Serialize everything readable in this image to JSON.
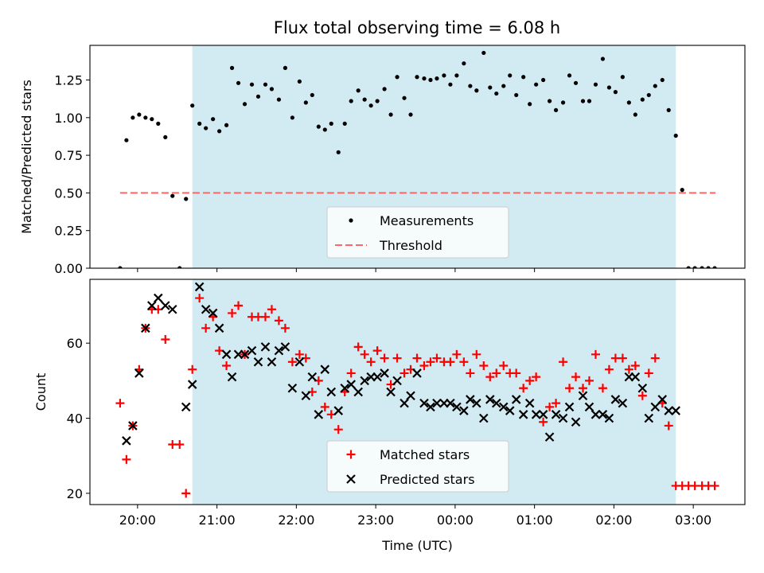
{
  "title": "Flux total observing time = 6.08 h",
  "colors": {
    "shade": "#add8e6",
    "measurement": "#000000",
    "threshold": "#ff6666",
    "matched": "#ff0000",
    "predicted": "#000000"
  },
  "chart_data": [
    {
      "type": "scatter",
      "ylabel": "Matched/Predicted stars",
      "xlabel": "",
      "xlim": [
        -0.6,
        7.65
      ],
      "ylim": [
        0,
        1.48
      ],
      "y_ticks": [
        {
          "value": 0.0,
          "label": "0.00"
        },
        {
          "value": 0.25,
          "label": "0.25"
        },
        {
          "value": 0.5,
          "label": "0.50"
        },
        {
          "value": 0.75,
          "label": "0.75"
        },
        {
          "value": 1.0,
          "label": "1.00"
        },
        {
          "value": 1.25,
          "label": "1.25"
        }
      ],
      "x_ticks": [
        0,
        1,
        2,
        3,
        4,
        5,
        6,
        7
      ],
      "shaded_x_range": [
        0.69,
        6.78
      ],
      "legend_position": "lower center",
      "legend": [
        {
          "label": "Measurements",
          "marker": "dot"
        },
        {
          "label": "Threshold",
          "marker": "dashed-line"
        }
      ],
      "threshold": {
        "value": 0.5,
        "x_range": [
          -0.22,
          7.28
        ]
      },
      "series": [
        {
          "name": "Measurements",
          "x": [
            -0.22,
            -0.14,
            -0.06,
            0.02,
            0.1,
            0.18,
            0.26,
            0.35,
            0.44,
            0.53,
            0.61,
            0.69,
            0.78,
            0.86,
            0.95,
            1.03,
            1.12,
            1.19,
            1.27,
            1.35,
            1.44,
            1.52,
            1.61,
            1.69,
            1.78,
            1.86,
            1.95,
            2.04,
            2.12,
            2.2,
            2.28,
            2.36,
            2.44,
            2.53,
            2.61,
            2.69,
            2.78,
            2.86,
            2.94,
            3.02,
            3.11,
            3.19,
            3.27,
            3.36,
            3.44,
            3.52,
            3.61,
            3.69,
            3.77,
            3.86,
            3.94,
            4.02,
            4.11,
            4.19,
            4.27,
            4.36,
            4.44,
            4.52,
            4.61,
            4.69,
            4.77,
            4.86,
            4.94,
            5.02,
            5.11,
            5.19,
            5.27,
            5.36,
            5.44,
            5.52,
            5.61,
            5.69,
            5.77,
            5.86,
            5.94,
            6.02,
            6.11,
            6.19,
            6.27,
            6.36,
            6.44,
            6.52,
            6.61,
            6.69,
            6.78,
            6.86,
            6.94,
            7.02,
            7.11,
            7.19,
            7.27
          ],
          "y": [
            0.0,
            0.85,
            1.0,
            1.02,
            1.0,
            0.99,
            0.96,
            0.87,
            0.48,
            0.0,
            0.46,
            1.08,
            0.96,
            0.93,
            0.99,
            0.91,
            0.95,
            1.33,
            1.23,
            1.09,
            1.22,
            1.14,
            1.22,
            1.19,
            1.12,
            1.33,
            1.0,
            1.24,
            1.1,
            1.15,
            0.94,
            0.92,
            0.96,
            0.77,
            0.96,
            1.11,
            1.18,
            1.12,
            1.08,
            1.11,
            1.19,
            1.02,
            1.27,
            1.13,
            1.02,
            1.27,
            1.26,
            1.25,
            1.26,
            1.28,
            1.22,
            1.28,
            1.36,
            1.21,
            1.18,
            1.43,
            1.2,
            1.16,
            1.21,
            1.28,
            1.15,
            1.27,
            1.09,
            1.22,
            1.25,
            1.11,
            1.05,
            1.1,
            1.28,
            1.23,
            1.11,
            1.11,
            1.22,
            1.39,
            1.2,
            1.17,
            1.27,
            1.1,
            1.02,
            1.12,
            1.15,
            1.21,
            1.25,
            1.05,
            0.88,
            0.52,
            0.0,
            0.0,
            0.0,
            0.0,
            0.0
          ]
        }
      ]
    },
    {
      "type": "scatter",
      "ylabel": "Count",
      "xlabel": "Time (UTC)",
      "xlim": [
        -0.6,
        7.65
      ],
      "ylim": [
        17,
        77
      ],
      "y_ticks": [
        {
          "value": 20,
          "label": "20"
        },
        {
          "value": 40,
          "label": "40"
        },
        {
          "value": 60,
          "label": "60"
        }
      ],
      "x_ticks": [
        {
          "value": 0,
          "label": "20:00"
        },
        {
          "value": 1,
          "label": "21:00"
        },
        {
          "value": 2,
          "label": "22:00"
        },
        {
          "value": 3,
          "label": "23:00"
        },
        {
          "value": 4,
          "label": "00:00"
        },
        {
          "value": 5,
          "label": "01:00"
        },
        {
          "value": 6,
          "label": "02:00"
        },
        {
          "value": 7,
          "label": "03:00"
        }
      ],
      "shaded_x_range": [
        0.69,
        6.78
      ],
      "legend_position": "lower center",
      "legend": [
        {
          "label": "Matched stars",
          "marker": "plus"
        },
        {
          "label": "Predicted stars",
          "marker": "cross"
        }
      ],
      "series": [
        {
          "name": "Matched stars",
          "x": [
            -0.22,
            -0.14,
            -0.06,
            0.02,
            0.1,
            0.18,
            0.26,
            0.35,
            0.44,
            0.53,
            0.61,
            0.69,
            0.78,
            0.86,
            0.95,
            1.03,
            1.12,
            1.19,
            1.27,
            1.35,
            1.44,
            1.52,
            1.61,
            1.69,
            1.78,
            1.86,
            1.95,
            2.04,
            2.12,
            2.2,
            2.28,
            2.36,
            2.44,
            2.53,
            2.61,
            2.69,
            2.78,
            2.86,
            2.94,
            3.02,
            3.11,
            3.19,
            3.27,
            3.36,
            3.44,
            3.52,
            3.61,
            3.69,
            3.77,
            3.86,
            3.94,
            4.02,
            4.11,
            4.19,
            4.27,
            4.36,
            4.44,
            4.52,
            4.61,
            4.69,
            4.77,
            4.86,
            4.94,
            5.02,
            5.11,
            5.19,
            5.27,
            5.36,
            5.44,
            5.52,
            5.61,
            5.69,
            5.77,
            5.86,
            5.94,
            6.02,
            6.11,
            6.19,
            6.27,
            6.36,
            6.44,
            6.52,
            6.61,
            6.69,
            6.78,
            6.86,
            6.94,
            7.02,
            7.11,
            7.19,
            7.27
          ],
          "y": [
            44,
            29,
            38,
            53,
            64,
            69,
            69,
            61,
            33,
            33,
            20,
            53,
            72,
            64,
            67,
            58,
            54,
            68,
            70,
            57,
            67,
            67,
            67,
            69,
            66,
            64,
            55,
            57,
            56,
            47,
            50,
            43,
            41,
            37,
            47,
            52,
            59,
            57,
            55,
            58,
            56,
            49,
            56,
            52,
            53,
            56,
            54,
            55,
            56,
            55,
            55,
            57,
            55,
            52,
            57,
            54,
            51,
            52,
            54,
            52,
            52,
            48,
            50,
            51,
            39,
            43,
            44,
            55,
            48,
            51,
            48,
            50,
            57,
            48,
            53,
            56,
            56,
            53,
            54,
            46,
            52,
            56,
            44,
            38,
            22,
            22,
            22,
            22,
            22,
            22,
            22
          ]
        },
        {
          "name": "Predicted stars",
          "x": [
            -0.14,
            -0.06,
            0.02,
            0.1,
            0.18,
            0.26,
            0.35,
            0.44,
            0.61,
            0.69,
            0.78,
            0.86,
            0.95,
            1.03,
            1.12,
            1.19,
            1.27,
            1.35,
            1.44,
            1.52,
            1.61,
            1.69,
            1.78,
            1.86,
            1.95,
            2.04,
            2.12,
            2.2,
            2.28,
            2.36,
            2.44,
            2.53,
            2.61,
            2.69,
            2.78,
            2.86,
            2.94,
            3.02,
            3.11,
            3.19,
            3.27,
            3.36,
            3.44,
            3.52,
            3.61,
            3.69,
            3.77,
            3.86,
            3.94,
            4.02,
            4.11,
            4.19,
            4.27,
            4.36,
            4.44,
            4.52,
            4.61,
            4.69,
            4.77,
            4.86,
            4.94,
            5.02,
            5.11,
            5.19,
            5.27,
            5.36,
            5.44,
            5.52,
            5.61,
            5.69,
            5.77,
            5.86,
            5.94,
            6.02,
            6.11,
            6.19,
            6.27,
            6.36,
            6.44,
            6.52,
            6.61,
            6.69,
            6.78
          ],
          "y": [
            34,
            38,
            52,
            64,
            70,
            72,
            70,
            69,
            43,
            49,
            75,
            69,
            68,
            64,
            57,
            51,
            57,
            57,
            58,
            55,
            59,
            55,
            58,
            59,
            48,
            55,
            46,
            51,
            41,
            53,
            47,
            42,
            48,
            49,
            47,
            50,
            51,
            51,
            52,
            47,
            50,
            44,
            46,
            52,
            44,
            43,
            44,
            44,
            44,
            43,
            42,
            45,
            44,
            40,
            45,
            44,
            43,
            42,
            45,
            41,
            44,
            41,
            41,
            35,
            41,
            40,
            43,
            39,
            46,
            43,
            41,
            41,
            40,
            45,
            44,
            51,
            51,
            48,
            40,
            43,
            45,
            42,
            42
          ]
        }
      ]
    }
  ]
}
